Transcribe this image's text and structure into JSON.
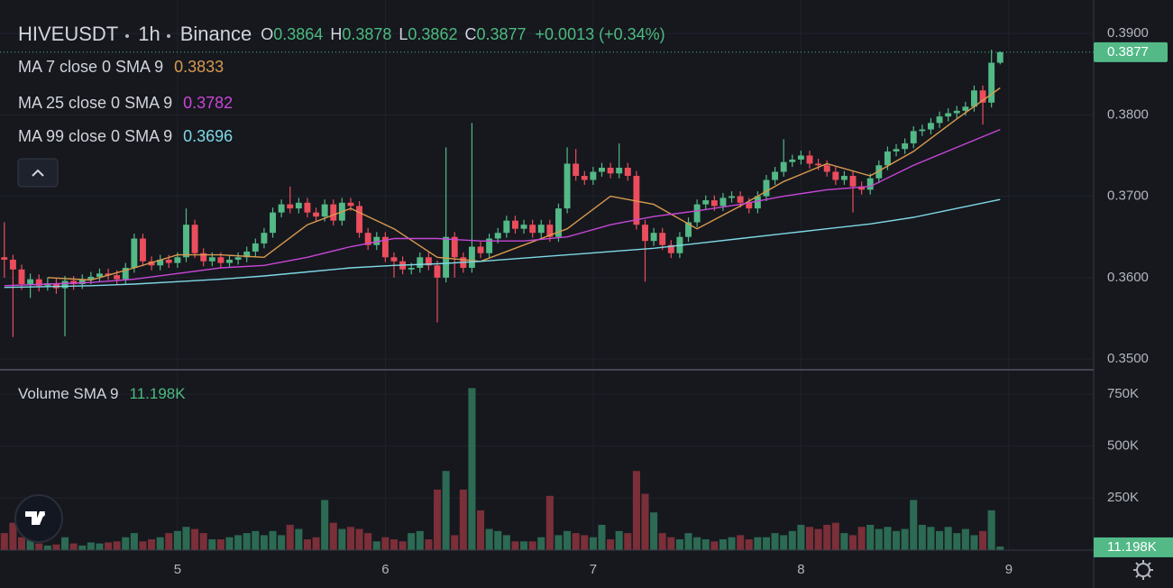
{
  "chart_data": {
    "type": "candlestick",
    "symbol": "HIVEUSDT",
    "interval": "1h",
    "exchange": "Binance",
    "ohlc_labels": [
      "O",
      "H",
      "L",
      "C"
    ],
    "change": {
      "value": 0.0013,
      "percent": 0.34,
      "label": "+0.0013 (+0.34%)"
    },
    "up_color": "#53b987",
    "down_color": "#eb4d5c",
    "open": [
      0.3625,
      0.3622,
      0.361,
      0.3592,
      0.3598,
      0.359,
      0.3593,
      0.3587,
      0.3596,
      0.3592,
      0.3598,
      0.3601,
      0.3605,
      0.3603,
      0.3598,
      0.3612,
      0.3648,
      0.362,
      0.3615,
      0.3622,
      0.3618,
      0.3625,
      0.3665,
      0.363,
      0.362,
      0.3625,
      0.3618,
      0.3622,
      0.3625,
      0.3632,
      0.3642,
      0.3655,
      0.368,
      0.369,
      0.3685,
      0.3692,
      0.368,
      0.3675,
      0.369,
      0.367,
      0.3692,
      0.3688,
      0.3655,
      0.364,
      0.365,
      0.3625,
      0.362,
      0.361,
      0.3612,
      0.3625,
      0.3615,
      0.36,
      0.365,
      0.3625,
      0.3612,
      0.3638,
      0.363,
      0.3648,
      0.3655,
      0.367,
      0.366,
      0.3665,
      0.3655,
      0.3665,
      0.365,
      0.3685,
      0.374,
      0.3725,
      0.372,
      0.373,
      0.3735,
      0.3728,
      0.3735,
      0.3725,
      0.3665,
      0.3645,
      0.3655,
      0.364,
      0.363,
      0.365,
      0.3668,
      0.369,
      0.3695,
      0.3688,
      0.3698,
      0.37,
      0.3692,
      0.3685,
      0.37,
      0.372,
      0.373,
      0.3742,
      0.3745,
      0.375,
      0.374,
      0.3738,
      0.373,
      0.372,
      0.3725,
      0.3712,
      0.3708,
      0.3722,
      0.3738,
      0.3755,
      0.3758,
      0.3765,
      0.378,
      0.3782,
      0.379,
      0.3798,
      0.3802,
      0.3805,
      0.381,
      0.383,
      0.3815,
      0.3864
    ],
    "high": [
      0.3668,
      0.3628,
      0.3616,
      0.3605,
      0.3604,
      0.36,
      0.3599,
      0.3602,
      0.3602,
      0.3604,
      0.3607,
      0.3611,
      0.3611,
      0.3609,
      0.3618,
      0.3654,
      0.3654,
      0.3626,
      0.3628,
      0.3628,
      0.3631,
      0.3685,
      0.3671,
      0.3636,
      0.3631,
      0.3631,
      0.3628,
      0.3631,
      0.3638,
      0.3648,
      0.3661,
      0.3686,
      0.3696,
      0.3712,
      0.3698,
      0.3698,
      0.3686,
      0.3696,
      0.3696,
      0.3698,
      0.3698,
      0.3694,
      0.3661,
      0.3656,
      0.3656,
      0.3631,
      0.3626,
      0.3618,
      0.3631,
      0.3631,
      0.3621,
      0.376,
      0.3656,
      0.3631,
      0.379,
      0.3644,
      0.3654,
      0.3661,
      0.3676,
      0.3676,
      0.3671,
      0.3671,
      0.3671,
      0.3671,
      0.3691,
      0.376,
      0.3758,
      0.3731,
      0.3736,
      0.3741,
      0.3741,
      0.3765,
      0.3741,
      0.3731,
      0.3671,
      0.3661,
      0.3661,
      0.3646,
      0.3656,
      0.3674,
      0.3696,
      0.3701,
      0.3701,
      0.3704,
      0.3706,
      0.3706,
      0.3698,
      0.3706,
      0.3726,
      0.3736,
      0.377,
      0.3751,
      0.3756,
      0.3756,
      0.3746,
      0.3744,
      0.3736,
      0.3731,
      0.3731,
      0.3718,
      0.3728,
      0.3744,
      0.3761,
      0.3764,
      0.3771,
      0.3786,
      0.3788,
      0.3796,
      0.3804,
      0.3808,
      0.3811,
      0.3816,
      0.3836,
      0.3836,
      0.388,
      0.3878
    ],
    "low": [
      0.36,
      0.3527,
      0.3585,
      0.3575,
      0.3583,
      0.3584,
      0.358,
      0.3528,
      0.3585,
      0.3586,
      0.3592,
      0.3595,
      0.3597,
      0.3592,
      0.3592,
      0.3606,
      0.3614,
      0.3609,
      0.3609,
      0.3612,
      0.3612,
      0.3619,
      0.3624,
      0.3614,
      0.3614,
      0.3612,
      0.3612,
      0.3616,
      0.3619,
      0.3626,
      0.3636,
      0.3649,
      0.3674,
      0.3679,
      0.3679,
      0.3674,
      0.3669,
      0.3669,
      0.3664,
      0.3664,
      0.3682,
      0.3649,
      0.3634,
      0.3634,
      0.3619,
      0.36,
      0.3604,
      0.3604,
      0.3606,
      0.3609,
      0.3545,
      0.3594,
      0.36,
      0.3606,
      0.3606,
      0.3624,
      0.3624,
      0.3642,
      0.3649,
      0.3654,
      0.3654,
      0.3649,
      0.3649,
      0.3644,
      0.3644,
      0.3679,
      0.3719,
      0.3714,
      0.3714,
      0.3724,
      0.3722,
      0.3722,
      0.3719,
      0.3659,
      0.3595,
      0.3639,
      0.3634,
      0.3624,
      0.3624,
      0.3644,
      0.3662,
      0.3684,
      0.3682,
      0.3682,
      0.3692,
      0.3686,
      0.3679,
      0.3679,
      0.3694,
      0.3714,
      0.3724,
      0.3736,
      0.3739,
      0.3734,
      0.3732,
      0.3724,
      0.3714,
      0.3714,
      0.368,
      0.3702,
      0.3702,
      0.3716,
      0.3732,
      0.3749,
      0.3752,
      0.3759,
      0.3774,
      0.3776,
      0.3784,
      0.3792,
      0.3796,
      0.3799,
      0.3804,
      0.3788,
      0.3809,
      0.3862
    ],
    "close": [
      0.3622,
      0.361,
      0.3592,
      0.3598,
      0.359,
      0.3593,
      0.3587,
      0.3596,
      0.3592,
      0.3598,
      0.3601,
      0.3605,
      0.3603,
      0.3598,
      0.3612,
      0.3648,
      0.362,
      0.3615,
      0.3622,
      0.3618,
      0.3625,
      0.3665,
      0.363,
      0.362,
      0.3625,
      0.3618,
      0.3622,
      0.3625,
      0.3632,
      0.3642,
      0.3655,
      0.368,
      0.369,
      0.3685,
      0.3692,
      0.368,
      0.3675,
      0.369,
      0.367,
      0.3692,
      0.3688,
      0.3655,
      0.364,
      0.365,
      0.3625,
      0.362,
      0.361,
      0.3612,
      0.3625,
      0.3615,
      0.36,
      0.365,
      0.3625,
      0.3612,
      0.3638,
      0.363,
      0.3648,
      0.3655,
      0.367,
      0.366,
      0.3665,
      0.3655,
      0.3665,
      0.365,
      0.3685,
      0.374,
      0.3725,
      0.372,
      0.373,
      0.3735,
      0.3728,
      0.3735,
      0.3725,
      0.3665,
      0.3645,
      0.3655,
      0.364,
      0.363,
      0.365,
      0.3668,
      0.369,
      0.3695,
      0.3688,
      0.3698,
      0.37,
      0.3692,
      0.3685,
      0.37,
      0.372,
      0.373,
      0.3742,
      0.3745,
      0.375,
      0.374,
      0.3738,
      0.373,
      0.372,
      0.3725,
      0.3712,
      0.3708,
      0.3722,
      0.3738,
      0.3755,
      0.3758,
      0.3765,
      0.378,
      0.3782,
      0.379,
      0.3798,
      0.3802,
      0.3805,
      0.381,
      0.383,
      0.3815,
      0.3864,
      0.3877
    ],
    "ylim": [
      0.3489,
      0.393
    ],
    "yticks": [
      {
        "value": 0.35,
        "label": "0.3500"
      },
      {
        "value": 0.36,
        "label": "0.3600"
      },
      {
        "value": 0.37,
        "label": "0.3700"
      },
      {
        "value": 0.38,
        "label": "0.3800"
      },
      {
        "value": 0.39,
        "label": "0.3900"
      }
    ],
    "xlim": [
      -0.5,
      125.8
    ],
    "xticks": [
      {
        "value": 20,
        "label": "5"
      },
      {
        "value": 44,
        "label": "6"
      },
      {
        "value": 68,
        "label": "7"
      },
      {
        "value": 92,
        "label": "8"
      },
      {
        "value": 116,
        "label": "9"
      }
    ],
    "moving_averages": [
      {
        "name": "MA 7 close 0 SMA 9",
        "color": "#d99a4e",
        "x": [
          0,
          5,
          10,
          15,
          20,
          25,
          30,
          35,
          40,
          45,
          50,
          55,
          60,
          65,
          70,
          75,
          80,
          85,
          90,
          95,
          100,
          105,
          110,
          115
        ],
        "values": [
          null,
          0.36,
          0.3597,
          0.3612,
          0.3628,
          0.3628,
          0.3625,
          0.3665,
          0.3685,
          0.366,
          0.3625,
          0.362,
          0.364,
          0.366,
          0.37,
          0.369,
          0.366,
          0.3688,
          0.3718,
          0.374,
          0.3725,
          0.3755,
          0.3795,
          0.3833
        ]
      },
      {
        "name": "MA 25 close 0 SMA 9",
        "color": "#c846d6",
        "x": [
          0,
          5,
          10,
          15,
          20,
          25,
          30,
          35,
          40,
          45,
          50,
          55,
          60,
          65,
          70,
          75,
          80,
          85,
          90,
          95,
          100,
          105,
          110,
          115
        ],
        "values": [
          0.359,
          0.3592,
          0.3594,
          0.3598,
          0.3605,
          0.3612,
          0.3615,
          0.3625,
          0.3638,
          0.3648,
          0.3648,
          0.3645,
          0.3645,
          0.365,
          0.3665,
          0.3675,
          0.3682,
          0.369,
          0.37,
          0.3708,
          0.3712,
          0.3738,
          0.376,
          0.3782
        ]
      },
      {
        "name": "MA 99 close 0 SMA 9",
        "color": "#7fd8e6",
        "x": [
          0,
          5,
          10,
          15,
          20,
          25,
          30,
          35,
          40,
          45,
          50,
          55,
          60,
          65,
          70,
          75,
          80,
          85,
          90,
          95,
          100,
          105,
          110,
          115
        ],
        "values": [
          0.3588,
          0.3589,
          0.359,
          0.3592,
          0.3595,
          0.3598,
          0.3602,
          0.3607,
          0.3612,
          0.3615,
          0.3617,
          0.362,
          0.3624,
          0.3628,
          0.3632,
          0.3636,
          0.3642,
          0.3648,
          0.3654,
          0.366,
          0.3666,
          0.3674,
          0.3685,
          0.3696
        ]
      }
    ],
    "volume": {
      "label": "Volume SMA 9",
      "sma": {
        "value": 11198,
        "label": "11.198K"
      },
      "up_color": "#2c6a53",
      "down_color": "#7a2f39",
      "values": [
        80000,
        130000,
        60000,
        50000,
        30000,
        20000,
        25000,
        60000,
        30000,
        20000,
        35000,
        30000,
        35000,
        40000,
        60000,
        80000,
        40000,
        50000,
        60000,
        80000,
        90000,
        110000,
        100000,
        80000,
        50000,
        50000,
        60000,
        70000,
        80000,
        90000,
        70000,
        90000,
        70000,
        120000,
        100000,
        50000,
        60000,
        240000,
        130000,
        100000,
        110000,
        100000,
        80000,
        40000,
        60000,
        50000,
        40000,
        80000,
        90000,
        50000,
        290000,
        380000,
        70000,
        290000,
        780000,
        190000,
        100000,
        90000,
        70000,
        40000,
        40000,
        40000,
        60000,
        260000,
        70000,
        90000,
        80000,
        70000,
        60000,
        120000,
        50000,
        90000,
        80000,
        380000,
        270000,
        180000,
        80000,
        60000,
        50000,
        80000,
        60000,
        50000,
        40000,
        50000,
        60000,
        70000,
        50000,
        60000,
        60000,
        80000,
        70000,
        90000,
        120000,
        110000,
        100000,
        120000,
        130000,
        80000,
        70000,
        110000,
        120000,
        100000,
        110000,
        90000,
        100000,
        240000,
        120000,
        110000,
        90000,
        110000,
        80000,
        100000,
        70000,
        90000,
        190000,
        15000
      ],
      "ylim": [
        0,
        860000
      ],
      "yticks": [
        {
          "value": 250000,
          "label": "250K"
        },
        {
          "value": 500000,
          "label": "500K"
        },
        {
          "value": 750000,
          "label": "750K"
        }
      ]
    },
    "grid": true
  }
}
